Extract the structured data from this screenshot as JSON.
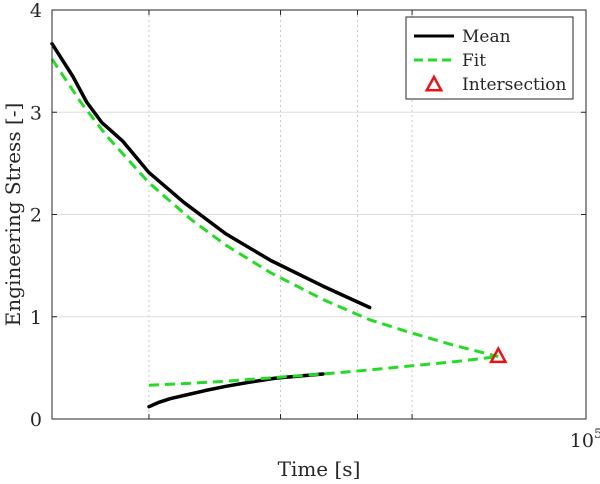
{
  "chart_data": {
    "type": "line",
    "title": "",
    "xlabel": "Time [s]",
    "ylabel": "Engineering Stress [-]",
    "xscale": "log",
    "xlim": [
      6000,
      100000
    ],
    "ylim": [
      0,
      4
    ],
    "x_tick_labels": [
      {
        "x": 100000,
        "base": "10",
        "exp": "5"
      }
    ],
    "yticks": [
      0,
      1,
      2,
      3,
      4
    ],
    "x_gridlines": [
      10000,
      20000,
      30000,
      40000,
      100000
    ],
    "grid": true,
    "legend": {
      "placement": "top-right",
      "entries": [
        "Mean",
        "Fit",
        "Intersection"
      ]
    },
    "series": [
      {
        "name": "Mean",
        "style": "solid",
        "color": "#000000",
        "branches": [
          {
            "x": [
              6000,
              6700,
              7200,
              7800,
              8700,
              10000,
              12000,
              15000,
              19000,
              25000,
              32000
            ],
            "y": [
              3.67,
              3.35,
              3.1,
              2.9,
              2.72,
              2.41,
              2.12,
              1.81,
              1.55,
              1.3,
              1.09
            ]
          },
          {
            "x": [
              10000,
              10500,
              11200,
              12300,
              13500,
              15000,
              17000,
              19500,
              22000,
              25000
            ],
            "y": [
              0.12,
              0.16,
              0.2,
              0.24,
              0.28,
              0.32,
              0.36,
              0.4,
              0.42,
              0.44
            ]
          }
        ]
      },
      {
        "name": "Fit",
        "style": "dashed",
        "color": "#22dd22",
        "branches": [
          {
            "x": [
              6000,
              7000,
              8000,
              10000,
              12500,
              15000,
              19000,
              25000,
              32000,
              40000,
              50000,
              63000
            ],
            "y": [
              3.52,
              3.09,
              2.77,
              2.31,
              1.95,
              1.7,
              1.43,
              1.17,
              0.97,
              0.84,
              0.72,
              0.61
            ]
          },
          {
            "x": [
              10000,
              12500,
              15000,
              20000,
              25000,
              32000,
              40000,
              50000,
              63000
            ],
            "y": [
              0.33,
              0.35,
              0.37,
              0.41,
              0.44,
              0.48,
              0.52,
              0.56,
              0.61
            ]
          }
        ]
      },
      {
        "name": "Intersection",
        "style": "marker-triangle",
        "color": "#ee1111",
        "x": [
          63000
        ],
        "y": [
          0.61
        ]
      }
    ]
  }
}
